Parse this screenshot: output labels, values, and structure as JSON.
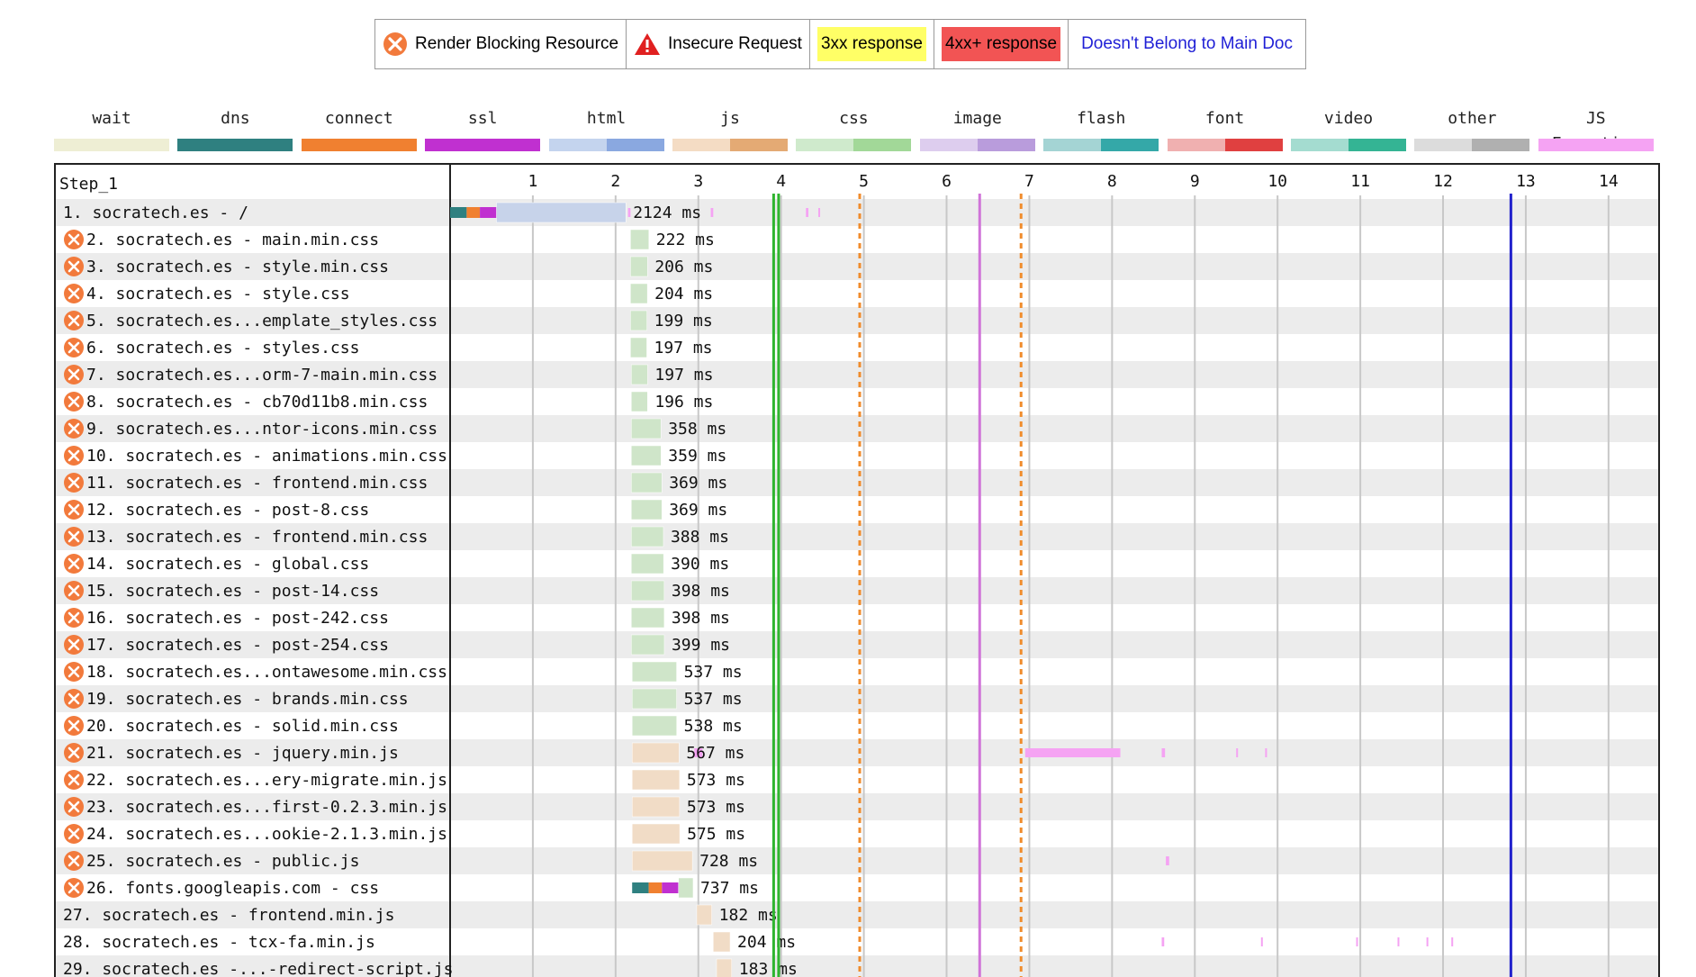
{
  "legend": {
    "render_blocking": "Render Blocking Resource",
    "insecure": "Insecure Request",
    "r3xx": "3xx response",
    "r4xx": "4xx+ response",
    "not_main": "Doesn't Belong to Main Doc"
  },
  "timing_legend": [
    {
      "label": "wait",
      "colors": [
        "#eeeed4"
      ]
    },
    {
      "label": "dns",
      "colors": [
        "#2f8080"
      ]
    },
    {
      "label": "connect",
      "colors": [
        "#f08030"
      ]
    },
    {
      "label": "ssl",
      "colors": [
        "#c030d0"
      ]
    },
    {
      "label": "html",
      "colors": [
        "#c4d4ee",
        "#8aa8e0"
      ]
    },
    {
      "label": "js",
      "colors": [
        "#f4dcc4",
        "#e4aa74"
      ]
    },
    {
      "label": "css",
      "colors": [
        "#cfeacc",
        "#a2d898"
      ]
    },
    {
      "label": "image",
      "colors": [
        "#ddcdee",
        "#b99cdc"
      ]
    },
    {
      "label": "flash",
      "colors": [
        "#a4d4d4",
        "#34a8a8"
      ]
    },
    {
      "label": "font",
      "colors": [
        "#f0b0b0",
        "#e04040"
      ]
    },
    {
      "label": "video",
      "colors": [
        "#a4dcd0",
        "#34b494"
      ]
    },
    {
      "label": "other",
      "colors": [
        "#dcdcdc",
        "#b0b0b0"
      ]
    },
    {
      "label": "JS Execution",
      "colors": [
        "#f5a3f3"
      ]
    }
  ],
  "colors": {
    "html": "#c7d3ea",
    "css": "#cfe5c9",
    "js": "#f1dcc6",
    "dom_interactive": "#2fb52f",
    "first_paint": "#f08c2c",
    "dom_content_loaded": "#d074d8",
    "onload": "#2222cc",
    "grid": "#c8c8c8",
    "row_alt": "#ececec",
    "blocking_icon": "#f27a3c",
    "insecure_icon": "#e02020",
    "r3xx_bg": "#ffff66",
    "r4xx_bg": "#f25454",
    "not_main_text": "#1f1fd6"
  },
  "chart_data": {
    "type": "waterfall",
    "step_label": "Step_1",
    "x_unit": "seconds",
    "x_ticks": [
      "1",
      "2",
      "3",
      "4",
      "5",
      "6",
      "7",
      "8",
      "9",
      "10",
      "11",
      "12",
      "13",
      "14"
    ],
    "xlim": [
      0,
      14.6
    ],
    "markers": [
      {
        "kind": "solid",
        "color": "#2fb52f",
        "t": 3.91
      },
      {
        "kind": "solid",
        "color": "#2fb52f",
        "t": 3.97
      },
      {
        "kind": "dashed",
        "color": "#f08c2c",
        "t": 4.95
      },
      {
        "kind": "solid",
        "color": "#d074d8",
        "t": 6.4
      },
      {
        "kind": "dashed",
        "color": "#f08c2c",
        "t": 6.9
      },
      {
        "kind": "solid",
        "color": "#2222cc",
        "t": 12.82
      }
    ],
    "requests": [
      {
        "label": "1. socratech.es - /",
        "blocking": false,
        "start": 0.0,
        "duration_ms": 2124,
        "type": "html",
        "phases": [
          {
            "t": 0.0,
            "d": 0.2,
            "c": "#2f8080"
          },
          {
            "t": 0.2,
            "d": 0.16,
            "c": "#f08030"
          },
          {
            "t": 0.36,
            "d": 0.2,
            "c": "#c030d0"
          }
        ],
        "js_exec": [
          [
            2.15,
            0.03
          ],
          [
            3.15,
            0.03
          ],
          [
            4.3,
            0.03
          ],
          [
            4.45,
            0.02
          ]
        ]
      },
      {
        "label": "2. socratech.es - main.min.css",
        "blocking": true,
        "start": 2.18,
        "duration_ms": 222,
        "type": "css"
      },
      {
        "label": "3. socratech.es - style.min.css",
        "blocking": true,
        "start": 2.18,
        "duration_ms": 206,
        "type": "css"
      },
      {
        "label": "4. socratech.es - style.css",
        "blocking": true,
        "start": 2.18,
        "duration_ms": 204,
        "type": "css"
      },
      {
        "label": "5. socratech.es...emplate_styles.css",
        "blocking": true,
        "start": 2.18,
        "duration_ms": 199,
        "type": "css"
      },
      {
        "label": "6. socratech.es - styles.css",
        "blocking": true,
        "start": 2.18,
        "duration_ms": 197,
        "type": "css"
      },
      {
        "label": "7. socratech.es...orm-7-main.min.css",
        "blocking": true,
        "start": 2.19,
        "duration_ms": 197,
        "type": "css"
      },
      {
        "label": "8. socratech.es - cb70d11b8.min.css",
        "blocking": true,
        "start": 2.19,
        "duration_ms": 196,
        "type": "css"
      },
      {
        "label": "9. socratech.es...ntor-icons.min.css",
        "blocking": true,
        "start": 2.19,
        "duration_ms": 358,
        "type": "css"
      },
      {
        "label": "10. socratech.es - animations.min.css",
        "blocking": true,
        "start": 2.19,
        "duration_ms": 359,
        "type": "css"
      },
      {
        "label": "11. socratech.es - frontend.min.css",
        "blocking": true,
        "start": 2.19,
        "duration_ms": 369,
        "type": "css"
      },
      {
        "label": "12. socratech.es - post-8.css",
        "blocking": true,
        "start": 2.19,
        "duration_ms": 369,
        "type": "css"
      },
      {
        "label": "13. socratech.es - frontend.min.css",
        "blocking": true,
        "start": 2.19,
        "duration_ms": 388,
        "type": "css"
      },
      {
        "label": "14. socratech.es - global.css",
        "blocking": true,
        "start": 2.19,
        "duration_ms": 390,
        "type": "css"
      },
      {
        "label": "15. socratech.es - post-14.css",
        "blocking": true,
        "start": 2.19,
        "duration_ms": 398,
        "type": "css"
      },
      {
        "label": "16. socratech.es - post-242.css",
        "blocking": true,
        "start": 2.19,
        "duration_ms": 398,
        "type": "css"
      },
      {
        "label": "17. socratech.es - post-254.css",
        "blocking": true,
        "start": 2.19,
        "duration_ms": 399,
        "type": "css"
      },
      {
        "label": "18. socratech.es...ontawesome.min.css",
        "blocking": true,
        "start": 2.2,
        "duration_ms": 537,
        "type": "css"
      },
      {
        "label": "19. socratech.es - brands.min.css",
        "blocking": true,
        "start": 2.2,
        "duration_ms": 537,
        "type": "css"
      },
      {
        "label": "20. socratech.es - solid.min.css",
        "blocking": true,
        "start": 2.2,
        "duration_ms": 538,
        "type": "css"
      },
      {
        "label": "21. socratech.es - jquery.min.js",
        "blocking": true,
        "start": 2.2,
        "duration_ms": 567,
        "type": "js",
        "js_exec": [
          [
            2.95,
            0.1
          ],
          [
            6.95,
            1.15
          ],
          [
            8.6,
            0.04
          ],
          [
            9.5,
            0.02
          ],
          [
            9.85,
            0.02
          ]
        ]
      },
      {
        "label": "22. socratech.es...ery-migrate.min.js",
        "blocking": true,
        "start": 2.2,
        "duration_ms": 573,
        "type": "js"
      },
      {
        "label": "23. socratech.es...first-0.2.3.min.js",
        "blocking": true,
        "start": 2.2,
        "duration_ms": 573,
        "type": "js"
      },
      {
        "label": "24. socratech.es...ookie-2.1.3.min.js",
        "blocking": true,
        "start": 2.2,
        "duration_ms": 575,
        "type": "js"
      },
      {
        "label": "25. socratech.es - public.js",
        "blocking": true,
        "start": 2.2,
        "duration_ms": 728,
        "type": "js",
        "js_exec": [
          [
            8.65,
            0.04
          ]
        ]
      },
      {
        "label": "26. fonts.googleapis.com - css",
        "blocking": true,
        "start": 2.2,
        "duration_ms": 737,
        "type": "css",
        "phases": [
          {
            "t": 2.2,
            "d": 0.2,
            "c": "#2f8080"
          },
          {
            "t": 2.4,
            "d": 0.16,
            "c": "#f08030"
          },
          {
            "t": 2.56,
            "d": 0.2,
            "c": "#c030d0"
          }
        ]
      },
      {
        "label": "27. socratech.es - frontend.min.js",
        "blocking": false,
        "start": 2.98,
        "duration_ms": 182,
        "type": "js"
      },
      {
        "label": "28. socratech.es - tcx-fa.min.js",
        "blocking": false,
        "start": 3.18,
        "duration_ms": 204,
        "type": "js",
        "js_exec": [
          [
            8.6,
            0.03
          ],
          [
            9.8,
            0.02
          ],
          [
            10.95,
            0.02
          ],
          [
            11.45,
            0.02
          ],
          [
            11.8,
            0.02
          ],
          [
            12.1,
            0.02
          ]
        ]
      },
      {
        "label": "29. socratech.es -...-redirect-script.js",
        "blocking": false,
        "start": 3.22,
        "duration_ms": 183,
        "type": "js"
      }
    ]
  }
}
